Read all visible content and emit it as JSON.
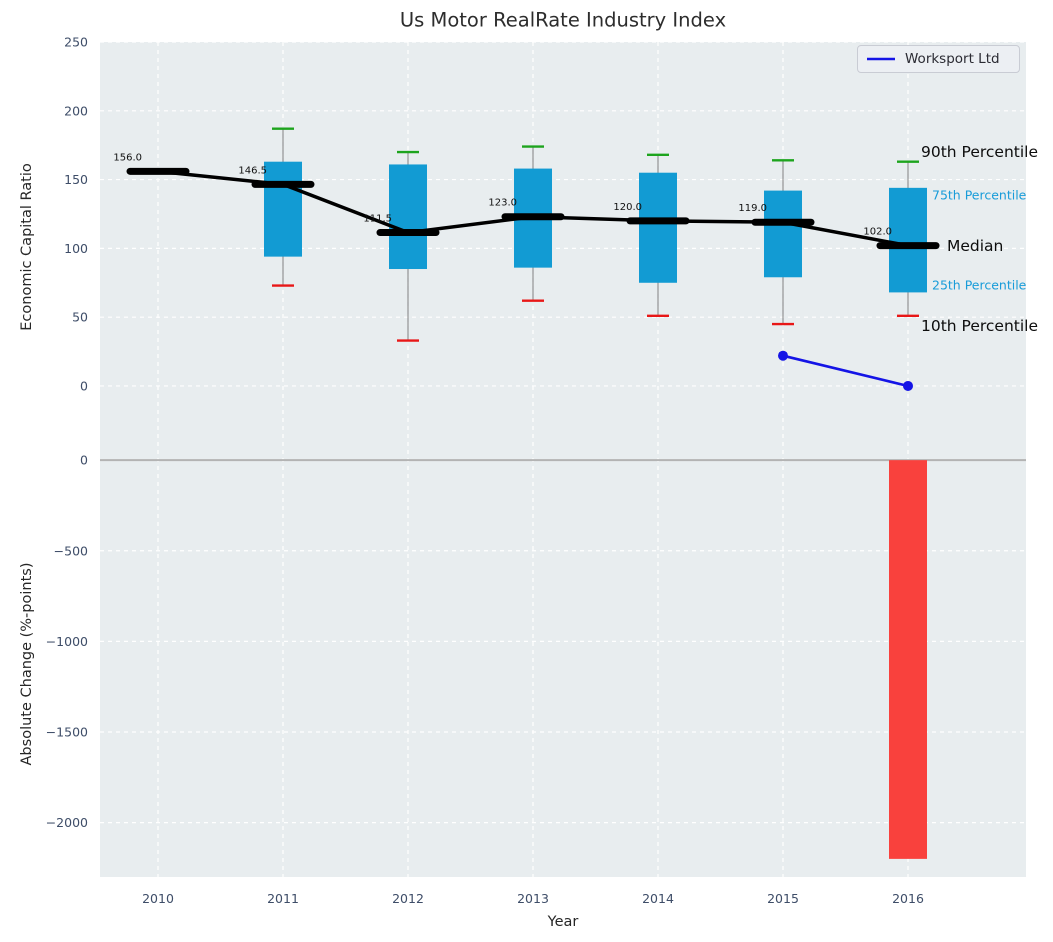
{
  "title": "Us Motor RealRate Industry Index",
  "legend": {
    "label": "Worksport Ltd"
  },
  "axes": {
    "x": {
      "label": "Year",
      "ticks": [
        2010,
        2011,
        2012,
        2013,
        2014,
        2015,
        2016
      ]
    },
    "top_y": {
      "label": "Economic Capital Ratio",
      "ticks": [
        0,
        50,
        100,
        150,
        200,
        250
      ]
    },
    "bottom_y": {
      "label": "Absolute Change (%-points)",
      "ticks": [
        0,
        -500,
        -1000,
        -1500,
        -2000
      ]
    }
  },
  "right_labels": {
    "p90": "90th Percentile",
    "p75": "75th Percentile",
    "median": "Median",
    "p25": "25th Percentile",
    "p10": "10th Percentile"
  },
  "colors": {
    "plot_bg": "#e8edef",
    "grid": "#ffffff",
    "tick_text": "#3e4d68",
    "box_fill": "#129bd3",
    "whisker": "#808080",
    "p90_cap": "#1da41d",
    "p10_cap": "#e81717",
    "median_line": "#000000",
    "annotation_text": "#111111",
    "company_line": "#1414e6",
    "bar_negative": "#f9413d",
    "zero_line": "#b3b3b3"
  },
  "chart_data": {
    "type": "boxplot+line+bar",
    "title": "Us Motor RealRate Industry Index",
    "xlabel": "Year",
    "top_panel": {
      "ylabel": "Economic Capital Ratio",
      "ylim": [
        -48,
        250
      ],
      "years": [
        2010,
        2011,
        2012,
        2013,
        2014,
        2015,
        2016
      ],
      "industry_percentiles": {
        "p10": [
          null,
          73,
          33,
          62,
          51,
          45,
          51
        ],
        "p25": [
          null,
          94,
          85,
          86,
          75,
          79,
          68
        ],
        "median": [
          156.0,
          146.5,
          111.5,
          123.0,
          120.0,
          119.0,
          102.0
        ],
        "p75": [
          null,
          163,
          161,
          158,
          155,
          142,
          144
        ],
        "p90": [
          null,
          187,
          170,
          174,
          168,
          164,
          163
        ]
      },
      "median_annotations": [
        "156.0",
        "146.5",
        "111.5",
        "123.0",
        "120.0",
        "119.0",
        "102.0"
      ],
      "company_series": {
        "name": "Worksport Ltd",
        "points": [
          {
            "year": 2015,
            "value": 22
          },
          {
            "year": 2016,
            "value": 0
          }
        ]
      }
    },
    "bottom_panel": {
      "ylabel": "Absolute Change (%-points)",
      "ylim": [
        -2300,
        45
      ],
      "bars": [
        {
          "year": 2016,
          "value": -2200
        }
      ]
    }
  }
}
